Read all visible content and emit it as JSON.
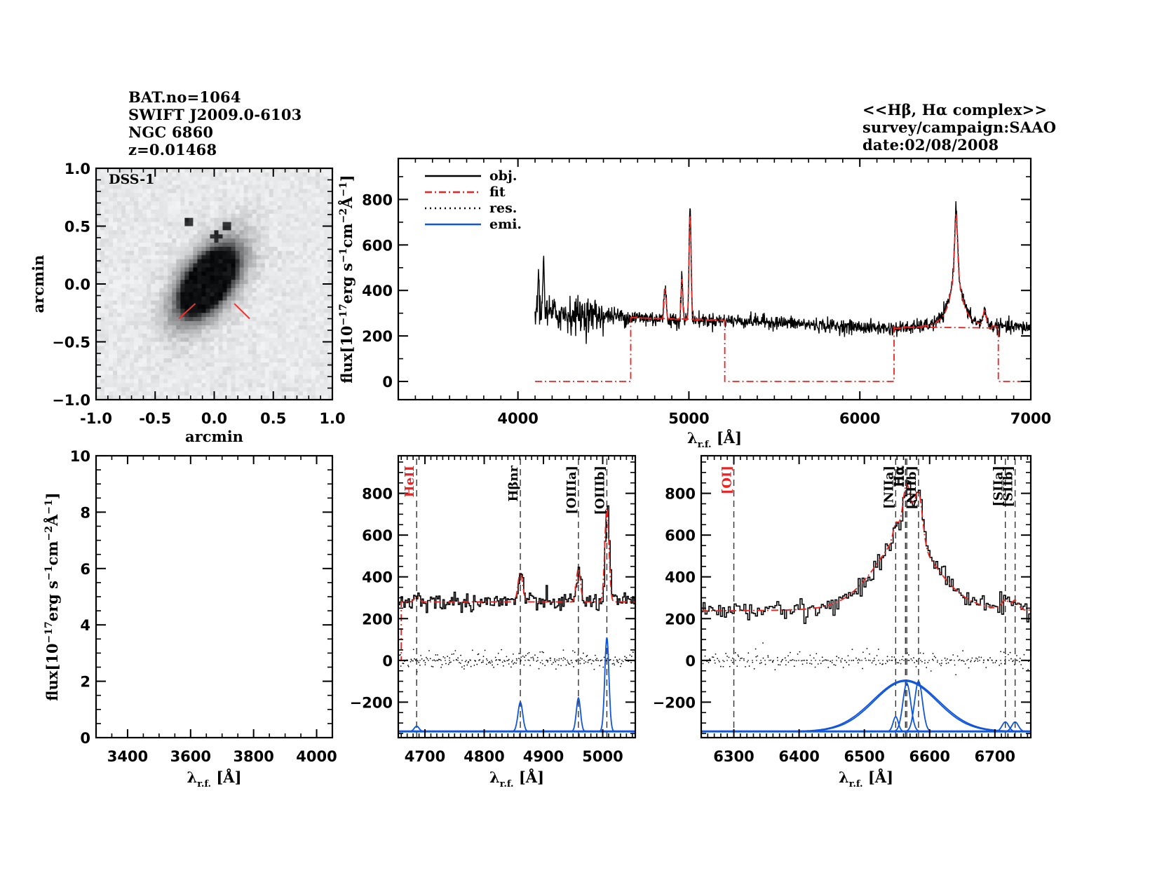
{
  "header": {
    "left_lines": [
      "BAT.no=1064",
      "SWIFT J2009.0-6103",
      "NGC 6860",
      "z=0.01468"
    ],
    "right_lines": [
      "<<Hβ, Hα complex>>",
      "survey/campaign:SAAO",
      "date:02/08/2008"
    ]
  },
  "colors": {
    "obj": "#000000",
    "fit": "#ee2222",
    "res": "#000000",
    "emi": "#1155dd",
    "annot_red": "#ee2222",
    "marker": "#ee3333"
  },
  "chart_data": [
    {
      "id": "image",
      "type": "heatmap",
      "title": "",
      "label": "DSS-1",
      "xlabel": "arcmin",
      "ylabel": "arcmin",
      "xlim": [
        -1.0,
        1.0
      ],
      "ylim": [
        -1.0,
        1.0
      ],
      "xticks": [
        "-1.0",
        "-0.5",
        "0.0",
        "0.5",
        "1.0"
      ],
      "yticks": [
        "-1.0",
        "-0.5",
        "0.0",
        "0.5",
        "1.0"
      ],
      "xtick_values": [
        -1.0,
        -0.5,
        0.0,
        0.5,
        1.0
      ],
      "ytick_values": [
        -1.0,
        -0.5,
        0.0,
        0.5,
        1.0
      ],
      "galaxy": {
        "center": [
          -0.05,
          0.02
        ],
        "semi_major": 0.42,
        "semi_minor": 0.22,
        "pa_deg": 55
      },
      "point_sources": [
        [
          -0.22,
          0.54
        ],
        [
          0.1,
          0.5
        ],
        [
          0.02,
          0.41
        ]
      ],
      "slit_markers": [
        {
          "from": [
            -0.3,
            -0.3
          ],
          "to": [
            -0.16,
            -0.17
          ]
        },
        {
          "from": [
            0.3,
            -0.3
          ],
          "to": [
            0.17,
            -0.17
          ]
        }
      ]
    },
    {
      "id": "full_spectrum",
      "type": "line",
      "xlabel": "λr.f. [Å]",
      "ylabel": "flux[10^-17 erg s^-1 cm^-2 Å^-1]",
      "xlim": [
        3300,
        7000
      ],
      "ylim": [
        -80,
        980
      ],
      "xticks": [
        "4000",
        "5000",
        "6000",
        "7000"
      ],
      "xtick_values": [
        4000,
        5000,
        6000,
        7000
      ],
      "yticks": [
        "0",
        "200",
        "400",
        "600",
        "800"
      ],
      "ytick_values": [
        0,
        200,
        400,
        600,
        800
      ],
      "legend": {
        "placement": "top-left",
        "entries": [
          {
            "name": "obj.",
            "style": "solid",
            "color": "#000000"
          },
          {
            "name": "fit",
            "style": "dashdot",
            "color": "#ee2222"
          },
          {
            "name": "res.",
            "style": "dotted",
            "color": "#000000"
          },
          {
            "name": "emi.",
            "style": "solid",
            "color": "#1155dd"
          }
        ]
      },
      "obj_range": [
        4100,
        7000
      ],
      "continuum": [
        [
          4100,
          300
        ],
        [
          4500,
          290
        ],
        [
          4700,
          280
        ],
        [
          5000,
          270
        ],
        [
          5400,
          265
        ],
        [
          5800,
          245
        ],
        [
          6200,
          230
        ],
        [
          6500,
          235
        ],
        [
          7000,
          235
        ]
      ],
      "obj_peaks": [
        {
          "x": 4150,
          "y": 590,
          "w": 4
        },
        {
          "x": 4120,
          "y": 480,
          "w": 4
        },
        {
          "x": 4861,
          "y": 415,
          "w": 6
        },
        {
          "x": 4959,
          "y": 460,
          "w": 5
        },
        {
          "x": 5007,
          "y": 760,
          "w": 6
        },
        {
          "x": 6563,
          "y": 760,
          "w": 40
        },
        {
          "x": 6731,
          "y": 310,
          "w": 8
        }
      ],
      "fit_segments": [
        [
          [
            4100,
            0
          ],
          [
            4660,
            0
          ],
          [
            4660,
            280
          ],
          [
            5210,
            270
          ],
          [
            5210,
            0
          ],
          [
            6200,
            0
          ],
          [
            6200,
            240
          ],
          [
            6810,
            235
          ],
          [
            6810,
            0
          ],
          [
            7000,
            0
          ]
        ]
      ],
      "fit_windows": [
        [
          4660,
          5210
        ],
        [
          6200,
          6810
        ]
      ]
    },
    {
      "id": "uv_panel",
      "type": "line",
      "xlabel": "λr.f. [Å]",
      "ylabel": "flux[10^-17 erg s^-1 cm^-2 Å^-1]",
      "xlim": [
        3300,
        4050
      ],
      "ylim": [
        0,
        10
      ],
      "xticks": [
        "3400",
        "3600",
        "3800",
        "4000"
      ],
      "xtick_values": [
        3400,
        3600,
        3800,
        4000
      ],
      "yticks": [
        "0",
        "2",
        "4",
        "6",
        "8",
        "10"
      ],
      "ytick_values": [
        0,
        2,
        4,
        6,
        8,
        10
      ],
      "series": []
    },
    {
      "id": "hbeta_panel",
      "type": "line",
      "xlabel": "λr.f. [Å]",
      "ylabel": "",
      "xlim": [
        4655,
        5055
      ],
      "ylim": [
        -370,
        980
      ],
      "xticks": [
        "4700",
        "4800",
        "4900",
        "5000"
      ],
      "xtick_values": [
        4700,
        4800,
        4900,
        5000
      ],
      "yticks": [
        "-200",
        "0",
        "200",
        "400",
        "600",
        "800"
      ],
      "ytick_values": [
        -200,
        0,
        200,
        400,
        600,
        800
      ],
      "continuum": 280,
      "emission_baseline": -340,
      "lines": [
        {
          "label": "HeII",
          "x": 4686,
          "color": "#ee2222",
          "amp": 25,
          "sigma": 4
        },
        {
          "label": "Hβnr",
          "x": 4861,
          "color": "#000000",
          "amp": 140,
          "sigma": 4
        },
        {
          "label": "[OIIIa]",
          "x": 4959,
          "color": "#000000",
          "amp": 160,
          "sigma": 3.5
        },
        {
          "label": "[OIIIb]",
          "x": 5007,
          "color": "#000000",
          "amp": 450,
          "sigma": 3.5
        }
      ],
      "fit_start": 4660
    },
    {
      "id": "halpha_panel",
      "type": "line",
      "xlabel": "λr.f. [Å]",
      "ylabel": "",
      "xlim": [
        6250,
        6755
      ],
      "ylim": [
        -370,
        980
      ],
      "xticks": [
        "6300",
        "6400",
        "6500",
        "6600",
        "6700"
      ],
      "xtick_values": [
        6300,
        6400,
        6500,
        6600,
        6700
      ],
      "yticks": [
        "-200",
        "0",
        "200",
        "400",
        "600",
        "800"
      ],
      "ytick_values": [
        -200,
        0,
        200,
        400,
        600,
        800
      ],
      "continuum": 235,
      "emission_baseline": -340,
      "lines": [
        {
          "label": "[OI]",
          "x": 6300,
          "color": "#ee2222",
          "amp": 0,
          "sigma": 4
        },
        {
          "label": "[NIIa]",
          "x": 6548,
          "color": "#000000",
          "amp": 70,
          "sigma": 4
        },
        {
          "label": "Hα",
          "x": 6563,
          "color": "#000000",
          "amp": 245,
          "sigma": 50
        },
        {
          "label": "Hα",
          "x": 6565,
          "color": "#000000",
          "amp": 230,
          "sigma": 6
        },
        {
          "label": "[NIIb]",
          "x": 6583,
          "color": "#000000",
          "amp": 240,
          "sigma": 6
        },
        {
          "label": "[SIIa]",
          "x": 6716,
          "color": "#000000",
          "amp": 45,
          "sigma": 5
        },
        {
          "label": "[SIIb]",
          "x": 6731,
          "color": "#000000",
          "amp": 45,
          "sigma": 5
        }
      ],
      "broad_extra": {
        "x": 6563,
        "amp": 240,
        "sigma": 48
      }
    }
  ]
}
